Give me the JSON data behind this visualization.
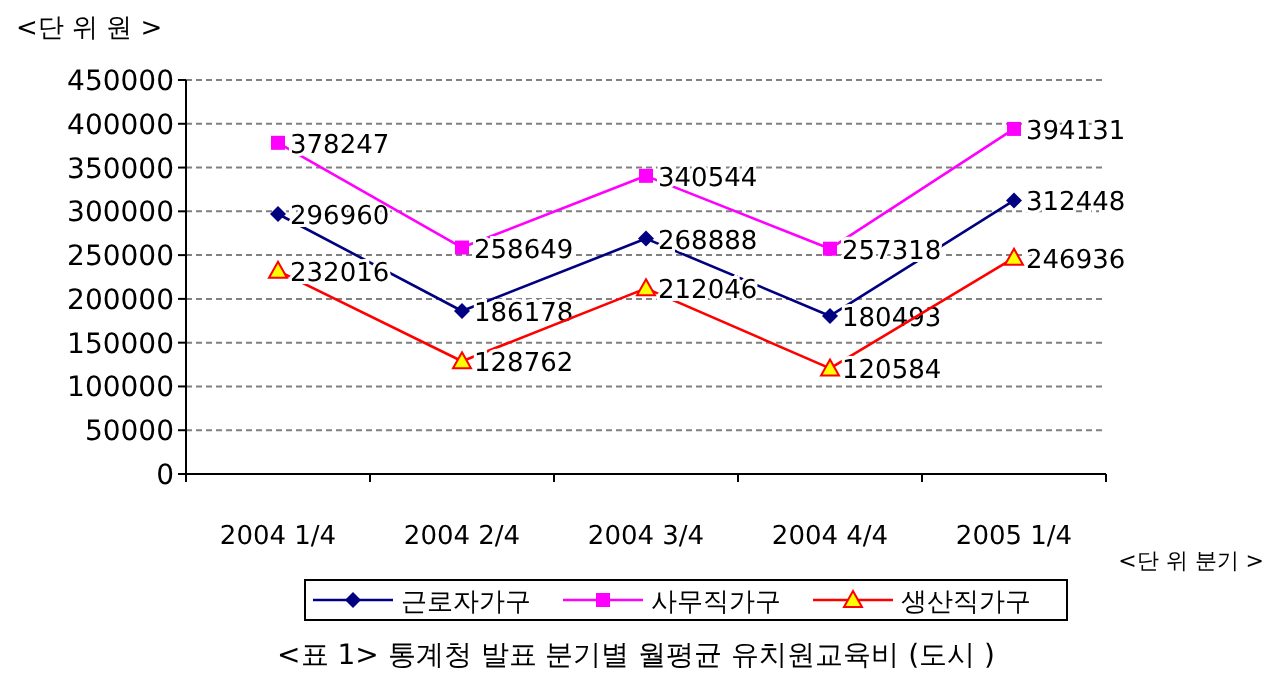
{
  "chart_data": {
    "type": "line",
    "ylabel": "<단 위 원 >",
    "xlabel": "<단 위 분기 >",
    "annotations": [
      "<표 1> 통계청 발표 분기별 월평균 유치원교육비 (도시 )"
    ],
    "categories": [
      "2004 1/4",
      "2004 2/4",
      "2004 3/4",
      "2004 4/4",
      "2005 1/4"
    ],
    "series": [
      {
        "name": "근로자가구",
        "color": "#000080",
        "marker": "diamond",
        "values": [
          296960,
          186178,
          268888,
          180493,
          312448
        ]
      },
      {
        "name": "사무직가구",
        "color": "#ff00ff",
        "marker": "square",
        "values": [
          378247,
          258649,
          340544,
          257318,
          394131
        ]
      },
      {
        "name": "생산직가구",
        "color": "#ff0000",
        "marker": "triangle",
        "values": [
          232016,
          128762,
          212046,
          120584,
          246936
        ]
      }
    ],
    "ylim": [
      0,
      450000
    ],
    "yticks": [
      0,
      50000,
      100000,
      150000,
      200000,
      250000,
      300000,
      350000,
      400000,
      450000
    ],
    "grid": "y",
    "legend": "bottom",
    "data_labels": true
  }
}
